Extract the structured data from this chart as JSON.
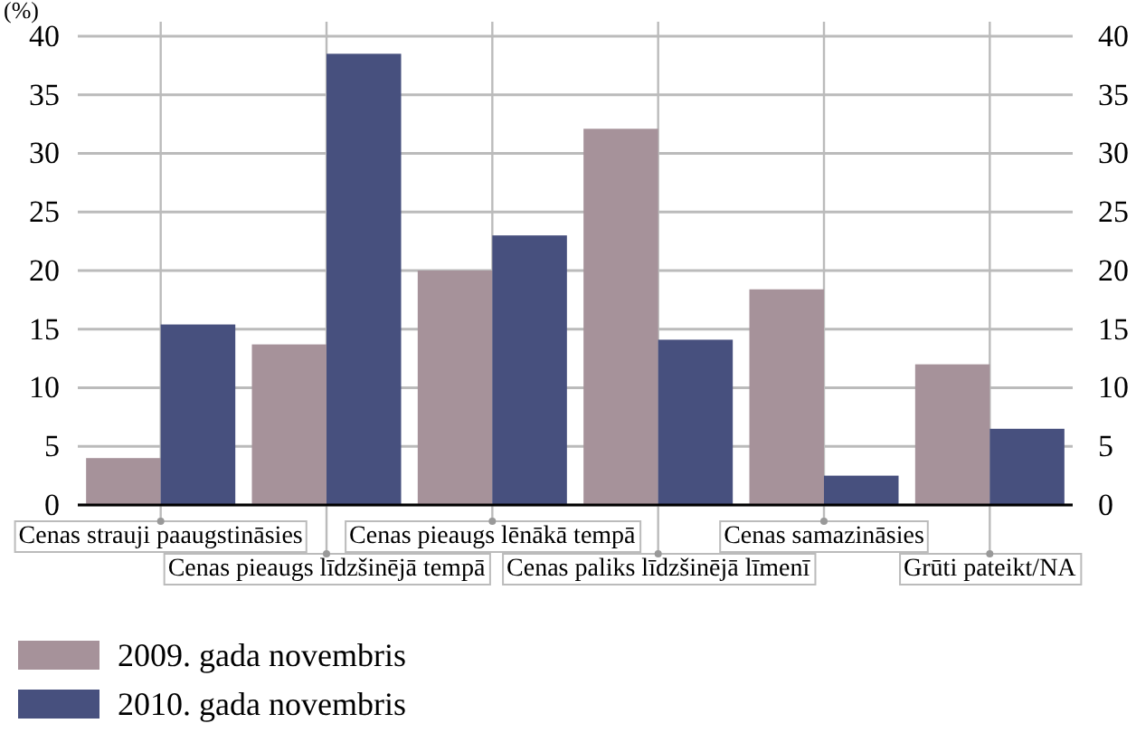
{
  "chart_data": {
    "type": "bar",
    "ylabel": "(%)",
    "categories": [
      "Cenas strauji paaugstināsies",
      "Cenas pieaugs līdzšinējā tempā",
      "Cenas pieaugs lēnākā tempā",
      "Cenas paliks līdzšinējā līmenī",
      "Cenas samazināsies",
      "Grūti pateikt/NA"
    ],
    "series": [
      {
        "name": "2009. gada novembris",
        "color": "#a6929a",
        "values": [
          4.0,
          13.7,
          20.0,
          32.1,
          18.4,
          12.0
        ]
      },
      {
        "name": "2010. gada novembris",
        "color": "#47507e",
        "values": [
          15.4,
          38.5,
          23.0,
          14.1,
          2.5,
          6.5
        ]
      }
    ],
    "ylim": [
      0,
      40
    ],
    "yticks": [
      0,
      5,
      10,
      15,
      20,
      25,
      30,
      35,
      40
    ],
    "y2lim": [
      0,
      40
    ],
    "y2ticks": [
      0,
      5,
      10,
      15,
      20,
      25,
      30,
      35,
      40
    ],
    "grid": true,
    "legend": "bottom left"
  }
}
